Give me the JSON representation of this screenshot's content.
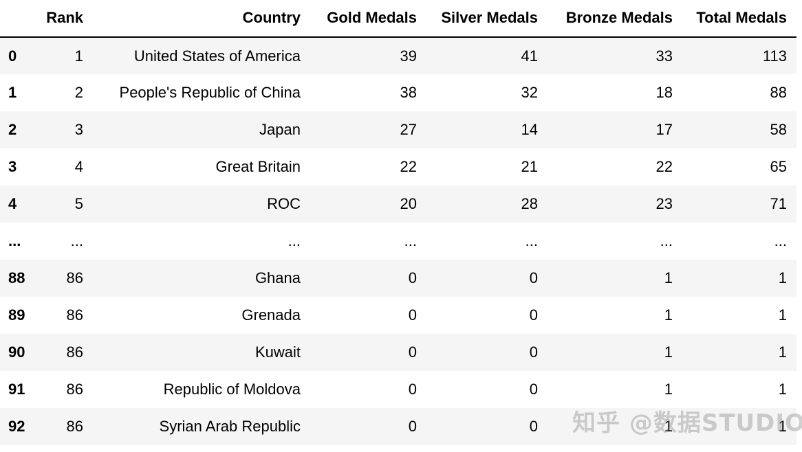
{
  "table": {
    "columns": [
      "",
      "Rank",
      "Country",
      "Gold Medals",
      "Silver Medals",
      "Bronze Medals",
      "Total Medals"
    ],
    "rows": [
      {
        "index": "0",
        "rank": "1",
        "country": "United States of America",
        "gold": "39",
        "silver": "41",
        "bronze": "33",
        "total": "113"
      },
      {
        "index": "1",
        "rank": "2",
        "country": "People's Republic of China",
        "gold": "38",
        "silver": "32",
        "bronze": "18",
        "total": "88"
      },
      {
        "index": "2",
        "rank": "3",
        "country": "Japan",
        "gold": "27",
        "silver": "14",
        "bronze": "17",
        "total": "58"
      },
      {
        "index": "3",
        "rank": "4",
        "country": "Great Britain",
        "gold": "22",
        "silver": "21",
        "bronze": "22",
        "total": "65"
      },
      {
        "index": "4",
        "rank": "5",
        "country": "ROC",
        "gold": "20",
        "silver": "28",
        "bronze": "23",
        "total": "71"
      },
      {
        "index": "...",
        "rank": "...",
        "country": "...",
        "gold": "...",
        "silver": "...",
        "bronze": "...",
        "total": "..."
      },
      {
        "index": "88",
        "rank": "86",
        "country": "Ghana",
        "gold": "0",
        "silver": "0",
        "bronze": "1",
        "total": "1"
      },
      {
        "index": "89",
        "rank": "86",
        "country": "Grenada",
        "gold": "0",
        "silver": "0",
        "bronze": "1",
        "total": "1"
      },
      {
        "index": "90",
        "rank": "86",
        "country": "Kuwait",
        "gold": "0",
        "silver": "0",
        "bronze": "1",
        "total": "1"
      },
      {
        "index": "91",
        "rank": "86",
        "country": "Republic of Moldova",
        "gold": "0",
        "silver": "0",
        "bronze": "1",
        "total": "1"
      },
      {
        "index": "92",
        "rank": "86",
        "country": "Syrian Arab Republic",
        "gold": "0",
        "silver": "0",
        "bronze": "1",
        "total": "1"
      }
    ]
  },
  "watermark": "知乎 @数据STUDIO"
}
